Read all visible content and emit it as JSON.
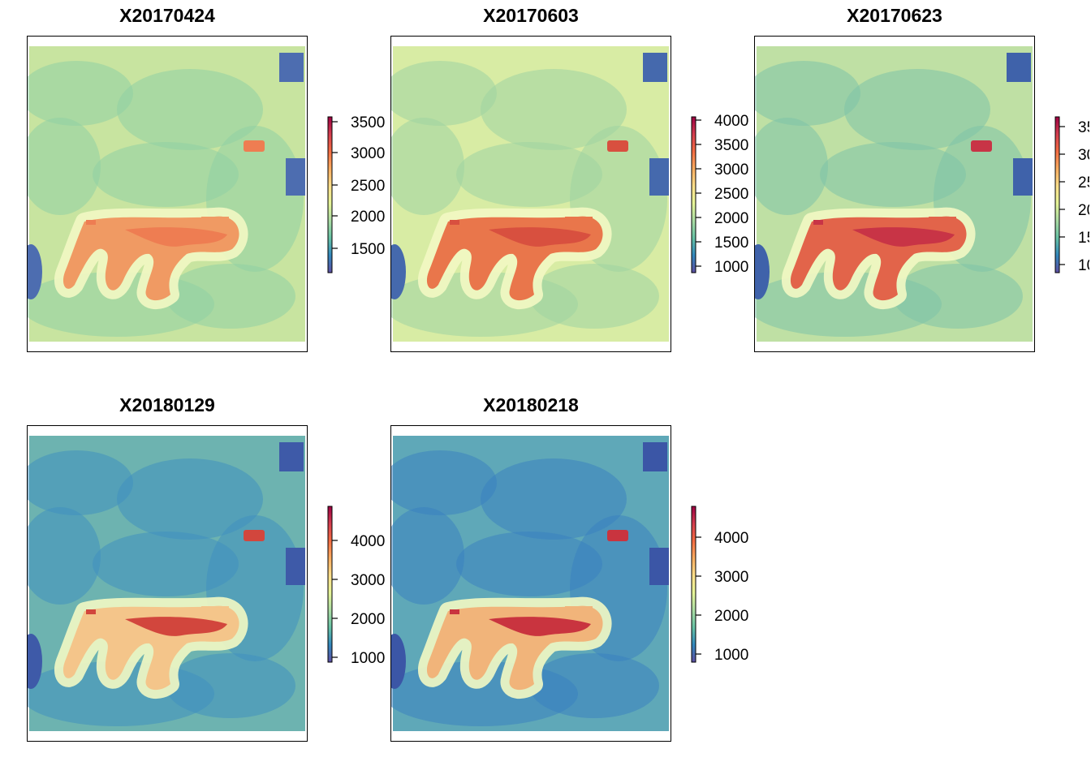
{
  "panels": [
    {
      "title": "X20170424",
      "legend": {
        "min": 1000,
        "max": 3800,
        "ticks": [
          "3500",
          "3000",
          "2500",
          "2000",
          "1500"
        ]
      },
      "style": "warm-mid"
    },
    {
      "title": "X20170603",
      "legend": {
        "min": 850,
        "max": 4300,
        "ticks": [
          "4000",
          "3500",
          "3000",
          "2500",
          "2000",
          "1500",
          "1000"
        ]
      },
      "style": "warm-high"
    },
    {
      "title": "X20170623",
      "legend": {
        "min": 950,
        "max": 3700,
        "ticks": [
          "35",
          "30",
          "25",
          "20",
          "15",
          "10"
        ]
      },
      "style": "warm-cool"
    },
    {
      "title": "X20180129",
      "legend": {
        "min": 800,
        "max": 5000,
        "ticks": [
          "4000",
          "3000",
          "2000",
          "1000"
        ]
      },
      "style": "winter-light"
    },
    {
      "title": "X20180218",
      "legend": {
        "min": 800,
        "max": 5000,
        "ticks": [
          "4000",
          "3000",
          "2000",
          "1000"
        ]
      },
      "style": "winter-dark"
    }
  ],
  "colors": {
    "ramp": [
      "#5e4fa2",
      "#3288bd",
      "#66c2a5",
      "#abdda4",
      "#e6f598",
      "#fee08b",
      "#fdae61",
      "#f46d43",
      "#d53e4f",
      "#9e0142"
    ]
  }
}
